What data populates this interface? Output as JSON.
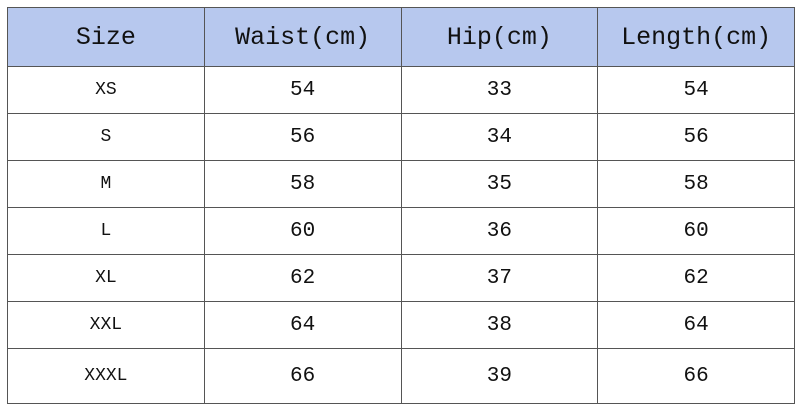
{
  "table": {
    "header": [
      "Size",
      "Waist(cm)",
      "Hip(cm)",
      "Length(cm)"
    ],
    "rows": [
      [
        "XS",
        54,
        33,
        54
      ],
      [
        "S",
        56,
        34,
        56
      ],
      [
        "M",
        58,
        35,
        58
      ],
      [
        "L",
        60,
        36,
        60
      ],
      [
        "XL",
        62,
        37,
        62
      ],
      [
        "XXL",
        64,
        38,
        64
      ],
      [
        "XXXL",
        66,
        39,
        66
      ]
    ]
  }
}
